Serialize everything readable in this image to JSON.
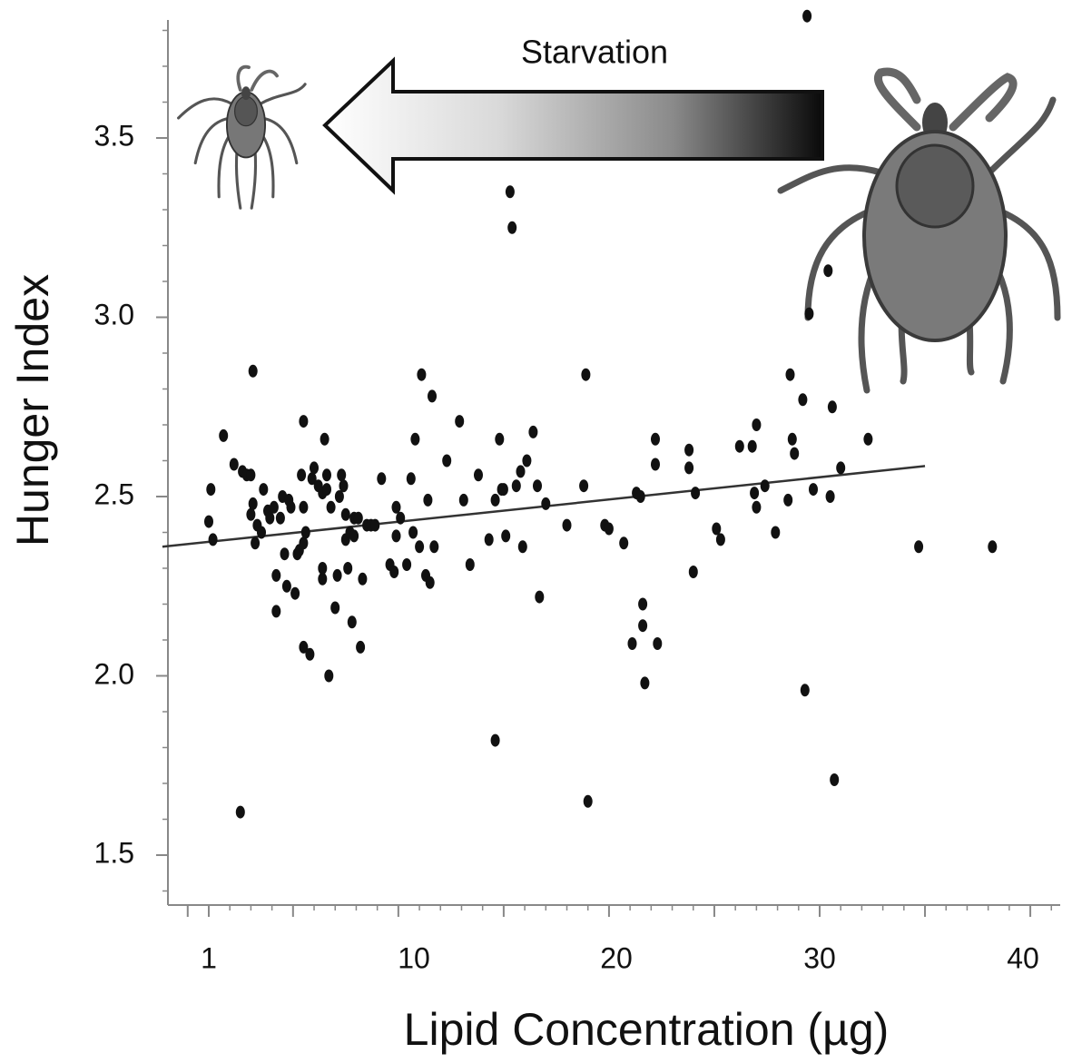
{
  "chart_data": {
    "type": "scatter",
    "title": "",
    "xlabel": "Lipid Concentration (µg)",
    "ylabel": "Hunger Index",
    "xlim": [
      -1.2,
      43
    ],
    "ylim": [
      1.38,
      3.85
    ],
    "x_ticks": [
      1,
      10,
      20,
      30,
      40
    ],
    "y_ticks": [
      1.5,
      2.0,
      2.5,
      3.0,
      3.5
    ],
    "x_tick_labels": [
      "1",
      "10",
      "20",
      "30",
      "40"
    ],
    "y_tick_labels": [
      "1.5",
      "2.0",
      "2.5",
      "3.0",
      "3.5"
    ],
    "grid": false,
    "annotation": {
      "text": "Starvation",
      "direction": "right-to-left"
    },
    "trendline": {
      "x": [
        -1.2,
        35
      ],
      "y": [
        2.36,
        2.585
      ]
    },
    "series": [
      {
        "name": "ticks",
        "marker_color": "#111111",
        "points": [
          [
            1.1,
            2.52
          ],
          [
            1.0,
            2.43
          ],
          [
            1.2,
            2.38
          ],
          [
            1.7,
            2.67
          ],
          [
            2.2,
            2.59
          ],
          [
            2.6,
            2.57
          ],
          [
            2.8,
            2.56
          ],
          [
            3.0,
            2.56
          ],
          [
            3.0,
            2.45
          ],
          [
            3.1,
            2.48
          ],
          [
            3.2,
            2.37
          ],
          [
            3.1,
            2.85
          ],
          [
            3.3,
            2.42
          ],
          [
            3.5,
            2.4
          ],
          [
            3.6,
            2.52
          ],
          [
            3.8,
            2.46
          ],
          [
            3.9,
            2.44
          ],
          [
            4.1,
            2.47
          ],
          [
            4.2,
            2.28
          ],
          [
            4.2,
            2.18
          ],
          [
            4.4,
            2.44
          ],
          [
            4.5,
            2.5
          ],
          [
            4.6,
            2.34
          ],
          [
            4.7,
            2.25
          ],
          [
            4.8,
            2.49
          ],
          [
            4.9,
            2.47
          ],
          [
            5.1,
            2.23
          ],
          [
            5.2,
            2.34
          ],
          [
            5.3,
            2.35
          ],
          [
            5.4,
            2.56
          ],
          [
            5.5,
            2.37
          ],
          [
            5.5,
            2.08
          ],
          [
            5.5,
            2.47
          ],
          [
            5.5,
            2.71
          ],
          [
            5.6,
            2.4
          ],
          [
            5.8,
            2.06
          ],
          [
            5.9,
            2.55
          ],
          [
            6.0,
            2.58
          ],
          [
            6.2,
            2.53
          ],
          [
            6.4,
            2.51
          ],
          [
            6.4,
            2.27
          ],
          [
            6.4,
            2.3
          ],
          [
            6.6,
            2.52
          ],
          [
            6.5,
            2.66
          ],
          [
            6.6,
            2.56
          ],
          [
            6.8,
            2.47
          ],
          [
            6.7,
            2.0
          ],
          [
            7.0,
            2.19
          ],
          [
            7.1,
            2.28
          ],
          [
            7.2,
            2.5
          ],
          [
            7.3,
            2.56
          ],
          [
            7.4,
            2.53
          ],
          [
            7.5,
            2.38
          ],
          [
            7.5,
            2.45
          ],
          [
            7.6,
            2.3
          ],
          [
            7.7,
            2.4
          ],
          [
            7.9,
            2.44
          ],
          [
            7.8,
            2.15
          ],
          [
            7.9,
            2.39
          ],
          [
            8.1,
            2.44
          ],
          [
            8.2,
            2.08
          ],
          [
            8.3,
            2.27
          ],
          [
            8.5,
            2.42
          ],
          [
            8.7,
            2.42
          ],
          [
            8.9,
            2.42
          ],
          [
            9.2,
            2.55
          ],
          [
            9.6,
            2.31
          ],
          [
            9.8,
            2.29
          ],
          [
            9.9,
            2.47
          ],
          [
            9.9,
            2.39
          ],
          [
            10.1,
            2.44
          ],
          [
            10.4,
            2.31
          ],
          [
            10.6,
            2.55
          ],
          [
            10.7,
            2.4
          ],
          [
            10.8,
            2.66
          ],
          [
            11.0,
            2.36
          ],
          [
            11.1,
            2.84
          ],
          [
            11.3,
            2.28
          ],
          [
            11.4,
            2.49
          ],
          [
            11.5,
            2.26
          ],
          [
            11.6,
            2.78
          ],
          [
            11.7,
            2.36
          ],
          [
            12.3,
            2.6
          ],
          [
            12.9,
            2.71
          ],
          [
            13.1,
            2.49
          ],
          [
            13.4,
            2.31
          ],
          [
            13.8,
            2.56
          ],
          [
            14.3,
            2.38
          ],
          [
            14.6,
            2.49
          ],
          [
            14.8,
            2.66
          ],
          [
            14.9,
            2.52
          ],
          [
            14.6,
            1.82
          ],
          [
            15.0,
            2.52
          ],
          [
            15.1,
            2.39
          ],
          [
            15.3,
            3.35
          ],
          [
            15.4,
            3.25
          ],
          [
            15.6,
            2.53
          ],
          [
            15.8,
            2.57
          ],
          [
            15.9,
            2.36
          ],
          [
            16.1,
            2.6
          ],
          [
            16.4,
            2.68
          ],
          [
            16.6,
            2.53
          ],
          [
            16.7,
            2.22
          ],
          [
            17.0,
            2.48
          ],
          [
            18.0,
            2.42
          ],
          [
            18.8,
            2.53
          ],
          [
            18.9,
            2.84
          ],
          [
            19.0,
            1.65
          ],
          [
            19.8,
            2.42
          ],
          [
            20.0,
            2.41
          ],
          [
            20.7,
            2.37
          ],
          [
            21.1,
            2.09
          ],
          [
            21.3,
            2.51
          ],
          [
            21.5,
            2.5
          ],
          [
            21.6,
            2.2
          ],
          [
            21.7,
            1.98
          ],
          [
            21.6,
            2.14
          ],
          [
            22.2,
            2.59
          ],
          [
            22.2,
            2.66
          ],
          [
            22.3,
            2.09
          ],
          [
            23.8,
            2.63
          ],
          [
            23.8,
            2.58
          ],
          [
            24.0,
            2.29
          ],
          [
            24.1,
            2.51
          ],
          [
            25.1,
            2.41
          ],
          [
            25.3,
            2.38
          ],
          [
            26.2,
            2.64
          ],
          [
            26.8,
            2.64
          ],
          [
            26.9,
            2.51
          ],
          [
            27.0,
            2.47
          ],
          [
            27.0,
            2.7
          ],
          [
            27.4,
            2.53
          ],
          [
            27.9,
            2.4
          ],
          [
            28.5,
            2.49
          ],
          [
            28.6,
            2.84
          ],
          [
            28.7,
            2.66
          ],
          [
            28.8,
            2.62
          ],
          [
            29.2,
            2.77
          ],
          [
            29.3,
            1.96
          ],
          [
            29.4,
            3.84
          ],
          [
            29.5,
            3.01
          ],
          [
            29.7,
            2.52
          ],
          [
            30.4,
            3.13
          ],
          [
            30.5,
            2.5
          ],
          [
            30.7,
            1.71
          ],
          [
            30.6,
            2.75
          ],
          [
            31.0,
            2.58
          ],
          [
            32.3,
            2.66
          ],
          [
            34.7,
            2.36
          ],
          [
            38.2,
            2.36
          ],
          [
            2.5,
            1.62
          ]
        ]
      }
    ]
  }
}
